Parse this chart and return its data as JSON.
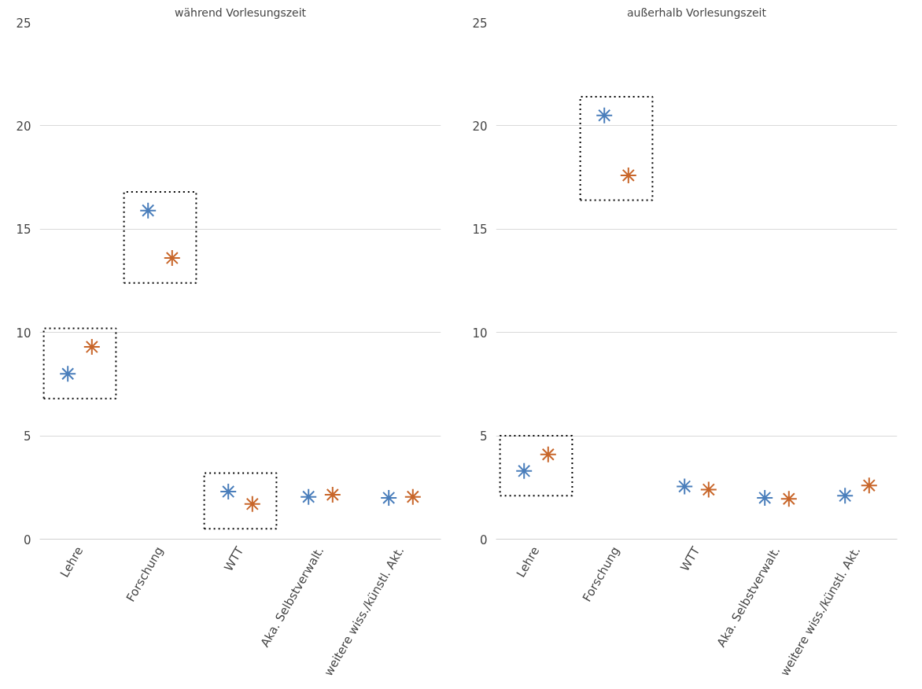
{
  "chart_data": [
    {
      "type": "scatter",
      "title": "während Vorlesungszeit",
      "categories": [
        "Lehre",
        "Forschung",
        "WTT",
        "Aka. Selbstverwalt.",
        "weitere wiss./künstl. Akt."
      ],
      "series": [
        {
          "color": "#4a7ebb",
          "values": [
            8.0,
            15.9,
            2.3,
            2.05,
            2.0
          ]
        },
        {
          "color": "#c8662a",
          "values": [
            9.3,
            13.6,
            1.7,
            2.15,
            2.05
          ]
        }
      ],
      "ylim": [
        0,
        25
      ],
      "yticks": [
        0,
        5,
        10,
        15,
        20,
        25
      ],
      "grid": "y",
      "marker": "cross"
    },
    {
      "type": "scatter",
      "title": "außerhalb Vorlesungszeit",
      "categories": [
        "Lehre",
        "Forschung",
        "WTT",
        "Aka. Selbstverwalt.",
        "weitere wiss./künstl. Akt."
      ],
      "series": [
        {
          "color": "#4a7ebb",
          "values": [
            3.3,
            20.5,
            2.55,
            2.0,
            2.1
          ]
        },
        {
          "color": "#c8662a",
          "values": [
            4.1,
            17.6,
            2.4,
            1.95,
            2.6
          ]
        }
      ],
      "ylim": [
        0,
        25
      ],
      "yticks": [
        0,
        5,
        10,
        15,
        20,
        25
      ],
      "grid": "y",
      "marker": "cross"
    }
  ]
}
